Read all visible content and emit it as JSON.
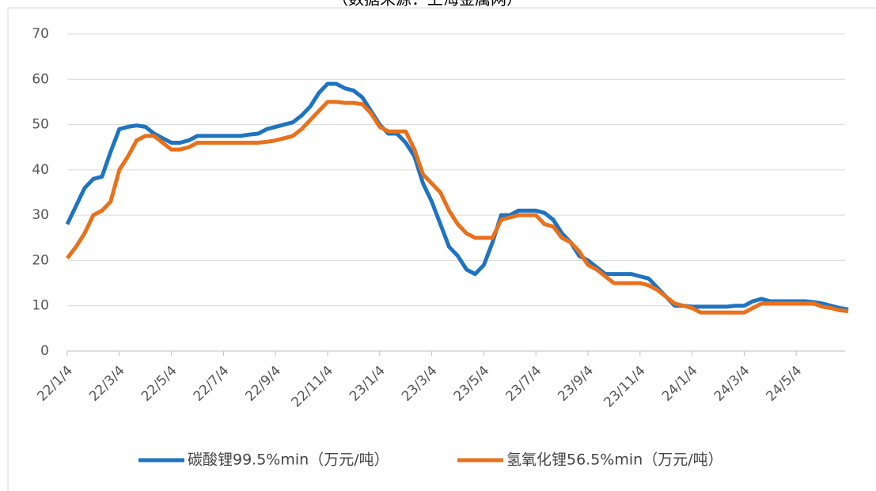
{
  "chart_data": {
    "type": "line",
    "source": "（数据来源：上海金属网）",
    "categories": [
      "22/1/4",
      null,
      null,
      null,
      null,
      null,
      "22/3/4",
      null,
      null,
      null,
      null,
      null,
      "22/5/4",
      null,
      null,
      null,
      null,
      null,
      "22/7/4",
      null,
      null,
      null,
      null,
      null,
      "22/9/4",
      null,
      null,
      null,
      null,
      null,
      "22/11/4",
      null,
      null,
      null,
      null,
      null,
      "23/1/4",
      null,
      null,
      null,
      null,
      null,
      "23/3/4",
      null,
      null,
      null,
      null,
      null,
      "23/5/4",
      null,
      null,
      null,
      null,
      null,
      "23/7/4",
      null,
      null,
      null,
      null,
      null,
      "23/9/4",
      null,
      null,
      null,
      null,
      null,
      "23/11/4",
      null,
      null,
      null,
      null,
      null,
      "24/1/4",
      null,
      null,
      null,
      null,
      null,
      "24/3/4",
      null,
      null,
      null,
      null,
      null,
      "24/5/4",
      null,
      null,
      null,
      null,
      null,
      null
    ],
    "series": [
      {
        "name": "碳酸锂99.5%min（万元/吨）",
        "color": "#1f74c0",
        "values": [
          28,
          32,
          36,
          38,
          38.5,
          44,
          49,
          49.5,
          49.8,
          49.5,
          48,
          47,
          46,
          46,
          46.5,
          47.5,
          47.5,
          47.5,
          47.5,
          47.5,
          47.5,
          47.8,
          48,
          49,
          49.5,
          50,
          50.5,
          52,
          54,
          57,
          59,
          59,
          58,
          57.5,
          56,
          53,
          50,
          48,
          48,
          46,
          43,
          37,
          33,
          28,
          23,
          21,
          18,
          17,
          19,
          24,
          30,
          30,
          31,
          31,
          31,
          30.5,
          29,
          26,
          24,
          21,
          20,
          18.5,
          17,
          17,
          17,
          17,
          16.5,
          16,
          14,
          12,
          10,
          10,
          9.8,
          9.8,
          9.8,
          9.8,
          9.8,
          10,
          10,
          11,
          11.5,
          11,
          11,
          11,
          11,
          11,
          10.8,
          10.5,
          10,
          9.5,
          9.2
        ]
      },
      {
        "name": "氢氧化锂56.5%min（万元/吨）",
        "color": "#e8711c",
        "values": [
          20.5,
          23,
          26,
          30,
          31,
          33,
          40,
          43,
          46.5,
          47.5,
          47.5,
          46,
          44.5,
          44.5,
          45,
          46,
          46,
          46,
          46,
          46,
          46,
          46,
          46,
          46.2,
          46.5,
          47,
          47.5,
          49,
          51,
          53,
          55,
          55,
          54.8,
          54.8,
          54.5,
          52.5,
          49.5,
          48.5,
          48.5,
          48.5,
          44.5,
          39,
          37,
          35,
          31,
          28,
          26,
          25,
          25,
          25,
          29,
          29.5,
          30,
          30,
          30,
          28,
          27.5,
          25,
          24,
          22,
          19,
          18,
          16.5,
          15,
          15,
          15,
          15,
          14.5,
          13.5,
          12,
          10.5,
          10,
          9.5,
          8.5,
          8.5,
          8.5,
          8.5,
          8.5,
          8.5,
          9.5,
          10.5,
          10.5,
          10.5,
          10.5,
          10.5,
          10.5,
          10.5,
          9.8,
          9.5,
          9,
          8.8
        ]
      }
    ],
    "ylim": [
      0,
      70
    ],
    "yticks": [
      0,
      10,
      20,
      30,
      40,
      50,
      60,
      70
    ],
    "grid": true
  }
}
